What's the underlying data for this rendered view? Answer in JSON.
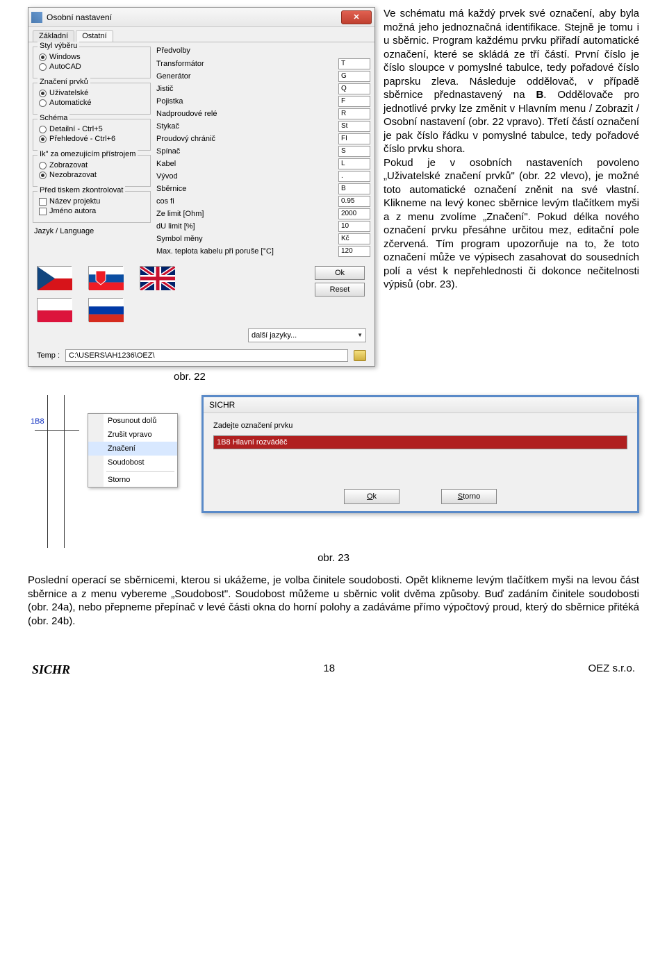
{
  "dialog": {
    "title": "Osobní nastavení",
    "tabs": [
      "Základní",
      "Ostatní"
    ],
    "active_tab": 1,
    "groups": {
      "styl": {
        "title": "Styl výběru",
        "options": [
          "Windows",
          "AutoCAD"
        ],
        "checked": 0
      },
      "znaceni": {
        "title": "Značení prvků",
        "options": [
          "Uživatelské",
          "Automatické"
        ],
        "checked": 0
      },
      "schema": {
        "title": "Schéma",
        "options": [
          "Detailní - Ctrl+5",
          "Přehledové - Ctrl+6"
        ],
        "checked": 1
      },
      "ik": {
        "title": "Ik\" za omezujícím přístrojem",
        "options": [
          "Zobrazovat",
          "Nezobrazovat"
        ],
        "checked": 1
      },
      "tisk": {
        "title": "Před tiskem zkontrolovat",
        "options": [
          "Název projektu",
          "Jméno autora"
        ]
      }
    },
    "predvolby_title": "Předvolby",
    "presets": [
      {
        "label": "Transformátor",
        "value": "T"
      },
      {
        "label": "Generátor",
        "value": "G"
      },
      {
        "label": "Jistič",
        "value": "Q"
      },
      {
        "label": "Pojistka",
        "value": "F"
      },
      {
        "label": "Nadproudové relé",
        "value": "R"
      },
      {
        "label": "Stykač",
        "value": "St"
      },
      {
        "label": "Proudový chránič",
        "value": "FI"
      },
      {
        "label": "Spínač",
        "value": "S"
      },
      {
        "label": "Kabel",
        "value": "L"
      },
      {
        "label": "Vývod",
        "value": "."
      },
      {
        "label": "Sběrnice",
        "value": "B"
      },
      {
        "label": "cos fi",
        "value": "0.95"
      },
      {
        "label": "Ze limit  [Ohm]",
        "value": "2000"
      },
      {
        "label": "dU limit [%]",
        "value": "10"
      },
      {
        "label": "Symbol měny",
        "value": "Kč"
      },
      {
        "label": "Max. teplota kabelu při poruše [°C]",
        "value": "120"
      }
    ],
    "jazyk_label": "Jazyk / Language",
    "ok": "Ok",
    "reset": "Reset",
    "other_lang": "další jazyky...",
    "temp_label": "Temp :",
    "temp_value": "C:\\USERS\\AH1236\\OEZ\\"
  },
  "text1": "Ve schématu má každý prvek své označení, aby byla možná jeho jednoznačná identifikace. Stejně je tomu i u sběrnic. Program každému prvku přiřadí automatické označení, které se skládá ze tří částí. První číslo je číslo sloupce v pomyslné tabulce, tedy pořadové číslo paprsku zleva. Následuje oddělovač, v případě sběrnice přednastavený na ",
  "text1b": ". Oddělovače pro jednotlivé prvky lze změnit v Hlavním menu / Zobrazit / Osobní nastavení (obr. 22 vpravo). Třetí částí označení je pak číslo řádku v pomyslné tabulce, tedy pořadové číslo prvku shora.",
  "text1b_bold": "B",
  "text1c": "Pokud je v osobních nastaveních povoleno „Uživatelské značení prvků\" (obr. 22 vlevo), je možné toto automatické označení zněnit na své vlastní. Klikneme na levý konec sběrnice levým tlačítkem myši a z menu zvolíme „Značení\". Pokud délka nového označení prvku přesáhne určitou mez, editační pole zčervená. Tím program upozorňuje na to, že toto označení může ve výpisech zasahovat do sousedních polí a vést k nepřehlednosti či dokonce nečitelnosti výpisů (obr. 23).",
  "caption22": "obr. 22",
  "fig23": {
    "node_label": "1B8",
    "menu": [
      "Posunout dolů",
      "Zrušit vpravo",
      "Značení",
      "Soudobost",
      "Storno"
    ],
    "hover_index": 2,
    "prompt_title": "SICHR",
    "prompt_label": "Zadejte označení prvku",
    "prompt_value": "1B8 Hlavní rozváděč",
    "ok": "Ok",
    "storno": "Storno"
  },
  "caption23": "obr. 23",
  "text2": "Poslední operací se sběrnicemi, kterou si ukážeme, je volba činitele soudobosti. Opět klikneme levým tlačítkem myši na levou část sběrnice a z menu vybereme „Soudobost\". Soudobost můžeme u sběrnic volit dvěma způsoby. Buď zadáním činitele soudobosti (obr. 24a), nebo přepneme přepínač v levé části okna do horní polohy a zadáváme přímo výpočtový proud, který do sběrnice přitéká (obr. 24b).",
  "footer": {
    "brand": "SICHR",
    "page": "18",
    "company": "OEZ s.r.o."
  }
}
